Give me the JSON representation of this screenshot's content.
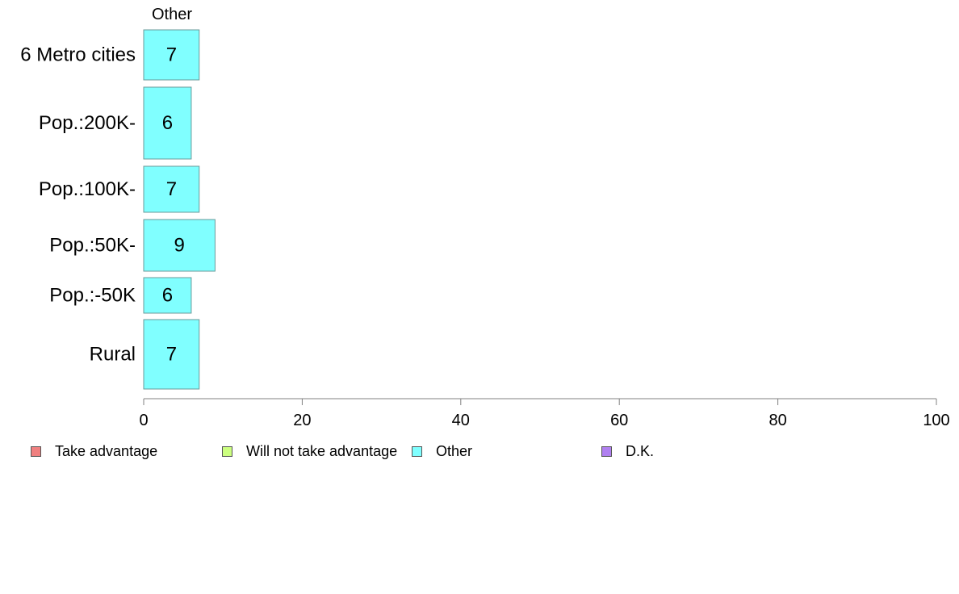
{
  "chart_data": {
    "type": "bar",
    "orientation": "horizontal",
    "series_header": "Other",
    "categories": [
      "6 Metro cities",
      "Pop.:200K-",
      "Pop.:100K-",
      "Pop.:50K-",
      "Pop.:-50K",
      "Rural"
    ],
    "series": [
      {
        "name": "Other",
        "values": [
          7,
          6,
          7,
          9,
          6,
          7
        ],
        "color": "#80ffff"
      }
    ],
    "xlim": [
      0,
      100
    ],
    "xticks": [
      0,
      20,
      40,
      60,
      80,
      100
    ],
    "grid": false,
    "legend_position": "bottom",
    "legend": [
      {
        "label": "Take advantage",
        "color": "#f08080"
      },
      {
        "label": "Will not take advantage",
        "color": "#ccff80"
      },
      {
        "label": "Other",
        "color": "#80ffff"
      },
      {
        "label": "D.K.",
        "color": "#b080f0"
      }
    ]
  }
}
